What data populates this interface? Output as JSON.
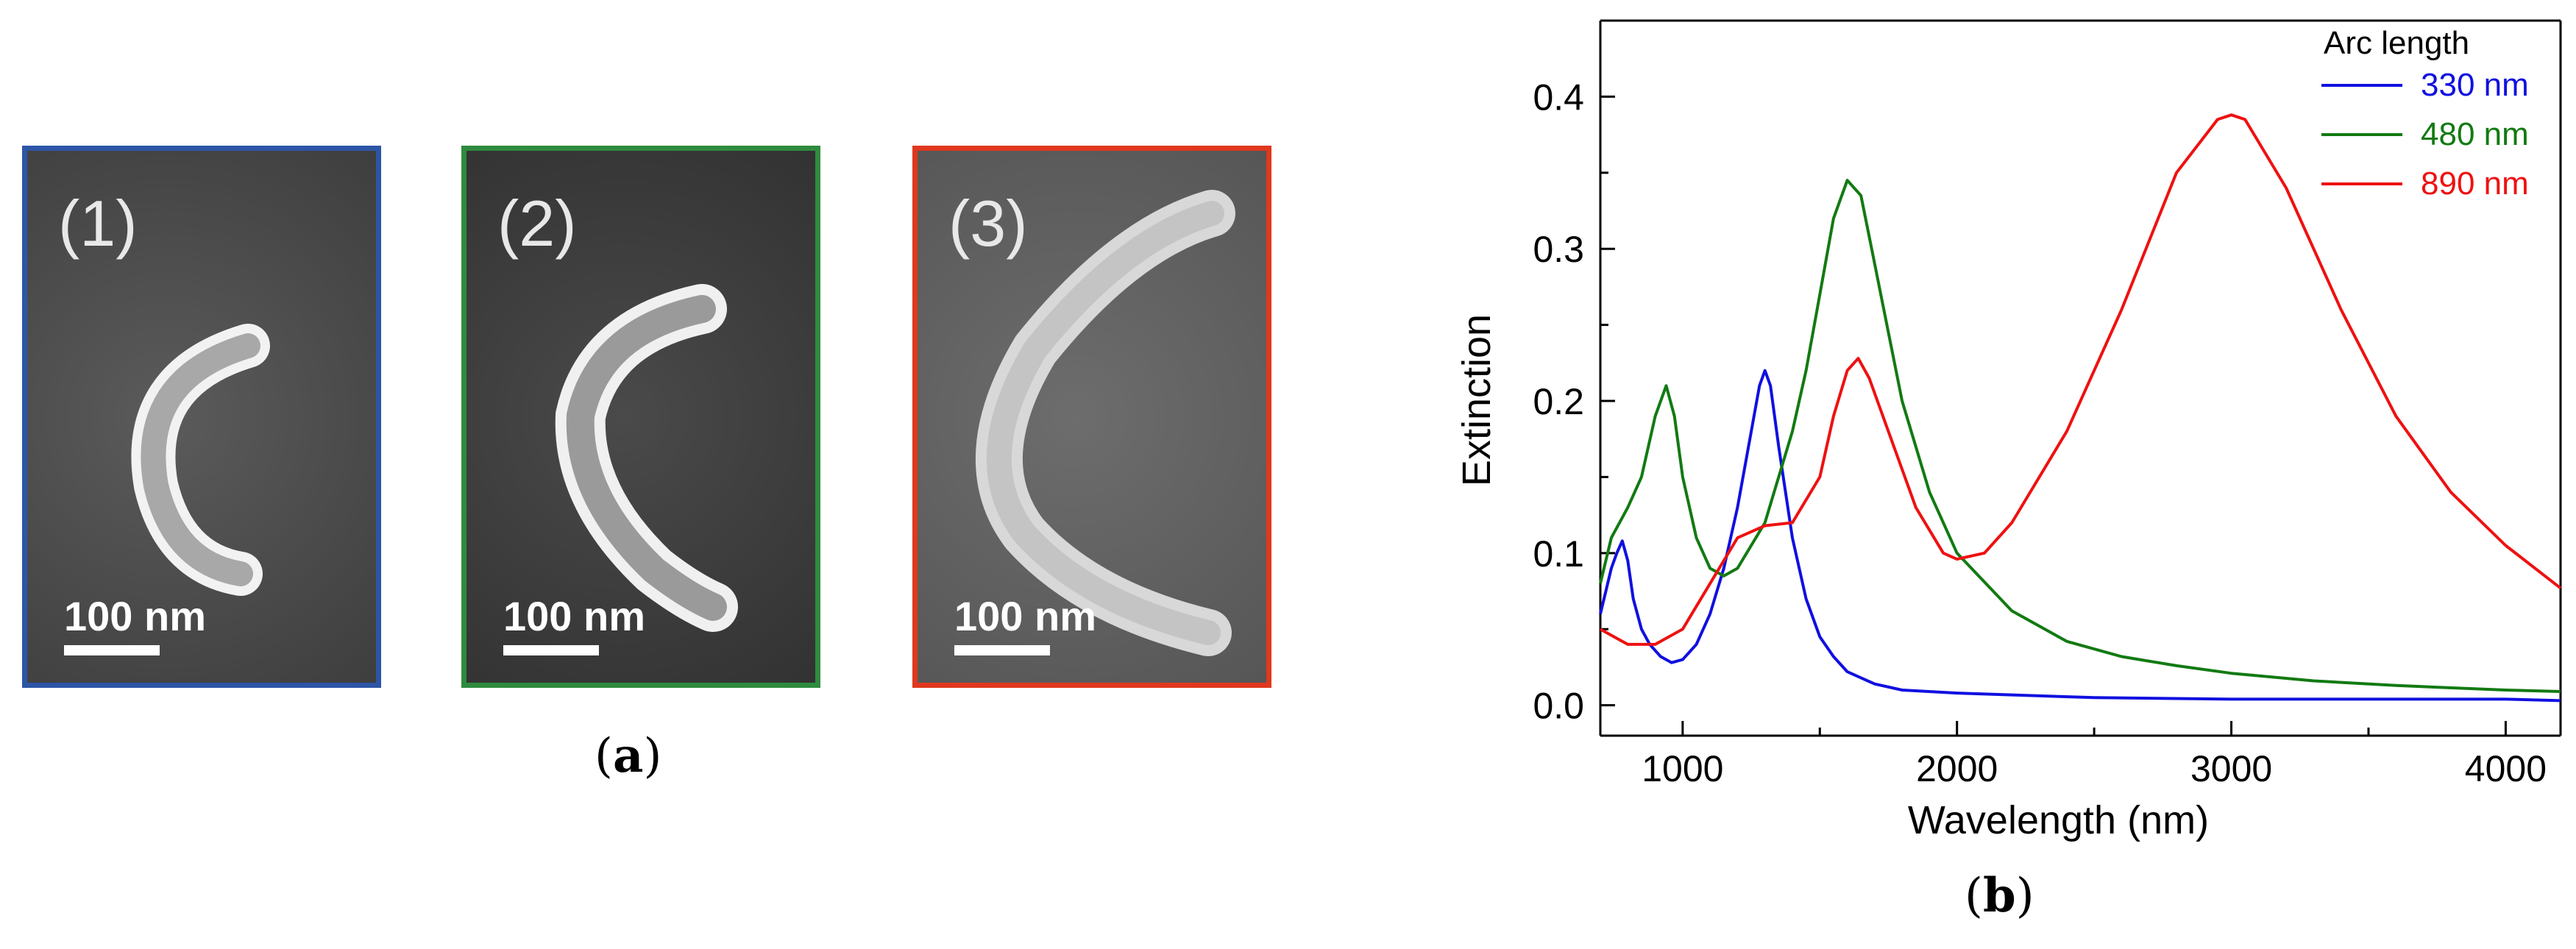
{
  "panel_a": {
    "label_open": "(",
    "label_letter": "a",
    "label_close": ")",
    "images": [
      {
        "id": "(1)",
        "scale": "100 nm",
        "frame_color": "#2d55a6",
        "arc_length_nm": 330
      },
      {
        "id": "(2)",
        "scale": "100 nm",
        "frame_color": "#2e8b3e",
        "arc_length_nm": 480
      },
      {
        "id": "(3)",
        "scale": "100 nm",
        "frame_color": "#e0381e",
        "arc_length_nm": 890
      }
    ]
  },
  "panel_b": {
    "label_open": "(",
    "label_letter": "b",
    "label_close": ")"
  },
  "chart_data": {
    "type": "line",
    "title": "",
    "xlabel": "Wavelength (nm)",
    "ylabel": "Extinction",
    "xlim": [
      700,
      4200
    ],
    "ylim": [
      -0.02,
      0.45
    ],
    "xticks": [
      1000,
      2000,
      3000,
      4000
    ],
    "xtick_labels": [
      "1000",
      "2000",
      "3000",
      "4000"
    ],
    "yticks": [
      0.0,
      0.1,
      0.2,
      0.3,
      0.4
    ],
    "ytick_labels": [
      "0.0",
      "0.1",
      "0.2",
      "0.3",
      "0.4"
    ],
    "legend_title": "Arc length",
    "legend_position": "top-right",
    "series": [
      {
        "name": "330 nm",
        "color": "#1010e0",
        "points": [
          [
            700,
            0.06
          ],
          [
            720,
            0.075
          ],
          [
            740,
            0.09
          ],
          [
            760,
            0.1
          ],
          [
            780,
            0.108
          ],
          [
            800,
            0.095
          ],
          [
            820,
            0.07
          ],
          [
            850,
            0.05
          ],
          [
            880,
            0.04
          ],
          [
            920,
            0.032
          ],
          [
            960,
            0.028
          ],
          [
            1000,
            0.03
          ],
          [
            1050,
            0.04
          ],
          [
            1100,
            0.06
          ],
          [
            1150,
            0.09
          ],
          [
            1200,
            0.13
          ],
          [
            1250,
            0.18
          ],
          [
            1280,
            0.21
          ],
          [
            1300,
            0.22
          ],
          [
            1320,
            0.21
          ],
          [
            1350,
            0.17
          ],
          [
            1400,
            0.11
          ],
          [
            1450,
            0.07
          ],
          [
            1500,
            0.045
          ],
          [
            1550,
            0.032
          ],
          [
            1600,
            0.022
          ],
          [
            1700,
            0.014
          ],
          [
            1800,
            0.01
          ],
          [
            2000,
            0.008
          ],
          [
            2500,
            0.005
          ],
          [
            3000,
            0.004
          ],
          [
            3500,
            0.004
          ],
          [
            4000,
            0.004
          ],
          [
            4200,
            0.003
          ]
        ]
      },
      {
        "name": "480 nm",
        "color": "#127a12",
        "points": [
          [
            700,
            0.08
          ],
          [
            740,
            0.11
          ],
          [
            800,
            0.13
          ],
          [
            850,
            0.15
          ],
          [
            900,
            0.19
          ],
          [
            940,
            0.21
          ],
          [
            970,
            0.19
          ],
          [
            1000,
            0.15
          ],
          [
            1050,
            0.11
          ],
          [
            1100,
            0.09
          ],
          [
            1150,
            0.085
          ],
          [
            1200,
            0.09
          ],
          [
            1300,
            0.12
          ],
          [
            1400,
            0.18
          ],
          [
            1450,
            0.22
          ],
          [
            1500,
            0.27
          ],
          [
            1550,
            0.32
          ],
          [
            1600,
            0.345
          ],
          [
            1650,
            0.335
          ],
          [
            1700,
            0.29
          ],
          [
            1800,
            0.2
          ],
          [
            1900,
            0.14
          ],
          [
            2000,
            0.1
          ],
          [
            2200,
            0.062
          ],
          [
            2400,
            0.042
          ],
          [
            2600,
            0.032
          ],
          [
            2800,
            0.026
          ],
          [
            3000,
            0.021
          ],
          [
            3300,
            0.016
          ],
          [
            3600,
            0.013
          ],
          [
            4000,
            0.01
          ],
          [
            4200,
            0.009
          ]
        ]
      },
      {
        "name": "890 nm",
        "color": "#ee1111",
        "points": [
          [
            700,
            0.05
          ],
          [
            750,
            0.045
          ],
          [
            800,
            0.04
          ],
          [
            900,
            0.04
          ],
          [
            1000,
            0.05
          ],
          [
            1100,
            0.08
          ],
          [
            1200,
            0.11
          ],
          [
            1300,
            0.118
          ],
          [
            1400,
            0.12
          ],
          [
            1500,
            0.15
          ],
          [
            1550,
            0.19
          ],
          [
            1600,
            0.22
          ],
          [
            1640,
            0.228
          ],
          [
            1680,
            0.215
          ],
          [
            1750,
            0.18
          ],
          [
            1850,
            0.13
          ],
          [
            1950,
            0.1
          ],
          [
            2000,
            0.096
          ],
          [
            2100,
            0.1
          ],
          [
            2200,
            0.12
          ],
          [
            2400,
            0.18
          ],
          [
            2600,
            0.26
          ],
          [
            2800,
            0.35
          ],
          [
            2950,
            0.385
          ],
          [
            3000,
            0.388
          ],
          [
            3050,
            0.385
          ],
          [
            3200,
            0.34
          ],
          [
            3400,
            0.26
          ],
          [
            3600,
            0.19
          ],
          [
            3800,
            0.14
          ],
          [
            4000,
            0.105
          ],
          [
            4200,
            0.077
          ]
        ]
      }
    ]
  }
}
